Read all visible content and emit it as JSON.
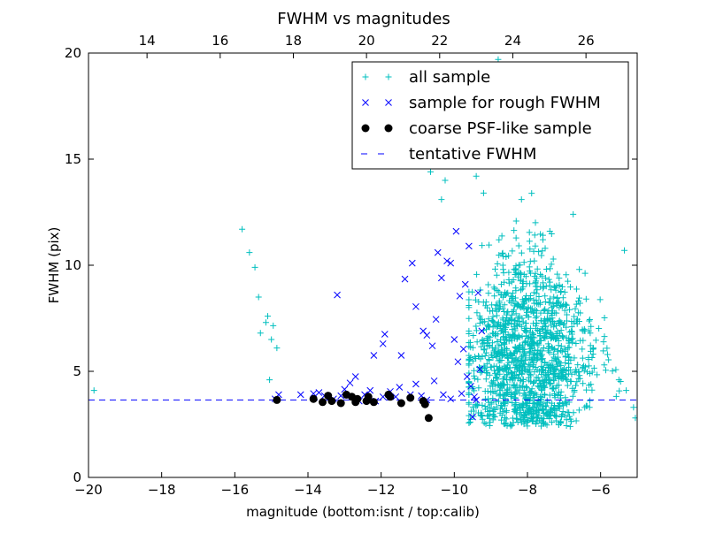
{
  "chart_data": {
    "type": "scatter",
    "title": "FWHM vs magnitudes",
    "xlabel": "magnitude (bottom:isnt / top:calib)",
    "ylabel": "FWHM (pix)",
    "xlim": [
      -20,
      -5
    ],
    "ylim": [
      0,
      20
    ],
    "x_ticks": [
      -20,
      -18,
      -16,
      -14,
      -12,
      -10,
      -8,
      -6
    ],
    "x_tick_labels": [
      "−20",
      "−18",
      "−16",
      "−14",
      "−12",
      "−10",
      "−8",
      "−6"
    ],
    "y_ticks": [
      0,
      5,
      10,
      15,
      20
    ],
    "y_tick_labels": [
      "0",
      "5",
      "10",
      "15",
      "20"
    ],
    "top_axis": {
      "xlim": [
        12.4,
        27.4
      ],
      "ticks": [
        14,
        16,
        18,
        20,
        22,
        24,
        26
      ],
      "tick_labels": [
        "14",
        "16",
        "18",
        "20",
        "22",
        "24",
        "26"
      ]
    },
    "grid": false,
    "legend_position": "top-right",
    "series": [
      {
        "name": "all sample",
        "marker": "plus",
        "color": "#00bfbf",
        "points": [
          [
            -19.85,
            4.1
          ],
          [
            -15.8,
            11.7
          ],
          [
            -15.6,
            10.6
          ],
          [
            -15.45,
            9.9
          ],
          [
            -15.35,
            8.5
          ],
          [
            -15.1,
            7.6
          ],
          [
            -15.15,
            7.3
          ],
          [
            -14.95,
            7.15
          ],
          [
            -15.0,
            6.5
          ],
          [
            -14.85,
            6.1
          ],
          [
            -15.3,
            6.8
          ],
          [
            -15.05,
            4.6
          ],
          [
            -9.2,
            13.4
          ],
          [
            -9.4,
            14.2
          ],
          [
            -9.5,
            15.6
          ],
          [
            -9.65,
            17.1
          ],
          [
            -8.8,
            19.7
          ],
          [
            -8.5,
            19.3
          ],
          [
            -8.15,
            18.3
          ],
          [
            -7.8,
            17.4
          ],
          [
            -7.5,
            16.2
          ],
          [
            -7.2,
            15.6
          ],
          [
            -6.75,
            12.4
          ],
          [
            -5.35,
            10.7
          ],
          [
            -10.65,
            14.4
          ],
          [
            -10.35,
            13.1
          ],
          [
            -10.25,
            14.0
          ],
          [
            -6.2,
            6.1
          ],
          [
            -5.9,
            5.3
          ],
          [
            -5.5,
            4.6
          ],
          [
            -5.3,
            4.1
          ],
          [
            -5.1,
            3.3
          ],
          [
            -5.05,
            2.8
          ]
        ],
        "cloud": {
          "x_range": [
            -9.6,
            -5.1
          ],
          "center_x": -8.0,
          "y_center": 5.8,
          "y_spread": 2.3,
          "count": 1400,
          "y_min": 2.4
        }
      },
      {
        "name": "sample for rough FWHM",
        "marker": "x",
        "color": "#0000ff",
        "points": [
          [
            -14.9,
            3.7
          ],
          [
            -14.8,
            3.9
          ],
          [
            -14.2,
            3.9
          ],
          [
            -13.85,
            3.95
          ],
          [
            -13.7,
            4.0
          ],
          [
            -13.55,
            3.85
          ],
          [
            -13.3,
            3.7
          ],
          [
            -13.1,
            3.85
          ],
          [
            -13.0,
            4.15
          ],
          [
            -12.85,
            4.45
          ],
          [
            -12.7,
            4.75
          ],
          [
            -12.6,
            3.6
          ],
          [
            -12.45,
            3.9
          ],
          [
            -12.3,
            4.1
          ],
          [
            -12.2,
            5.75
          ],
          [
            -12.15,
            3.6
          ],
          [
            -11.95,
            3.8
          ],
          [
            -11.75,
            4.05
          ],
          [
            -11.6,
            3.8
          ],
          [
            -11.5,
            4.25
          ],
          [
            -11.2,
            3.9
          ],
          [
            -11.05,
            4.4
          ],
          [
            -10.9,
            3.85
          ],
          [
            -10.75,
            3.65
          ],
          [
            -13.2,
            8.6
          ],
          [
            -11.95,
            6.3
          ],
          [
            -11.9,
            6.75
          ],
          [
            -11.45,
            5.75
          ],
          [
            -11.35,
            9.35
          ],
          [
            -11.15,
            10.1
          ],
          [
            -11.05,
            8.05
          ],
          [
            -10.85,
            6.9
          ],
          [
            -10.75,
            6.7
          ],
          [
            -10.6,
            6.2
          ],
          [
            -10.5,
            7.45
          ],
          [
            -10.45,
            10.6
          ],
          [
            -10.35,
            9.4
          ],
          [
            -10.2,
            10.2
          ],
          [
            -10.1,
            10.1
          ],
          [
            -9.95,
            11.6
          ],
          [
            -9.85,
            8.55
          ],
          [
            -9.7,
            9.1
          ],
          [
            -9.6,
            10.9
          ],
          [
            -10.0,
            6.5
          ],
          [
            -9.9,
            5.45
          ],
          [
            -9.75,
            6.05
          ],
          [
            -9.65,
            4.75
          ],
          [
            -9.55,
            4.3
          ],
          [
            -9.45,
            3.8
          ],
          [
            -9.4,
            3.65
          ],
          [
            -9.5,
            2.85
          ],
          [
            -10.1,
            3.7
          ],
          [
            -9.8,
            3.95
          ],
          [
            -9.3,
            5.1
          ],
          [
            -9.25,
            6.9
          ],
          [
            -9.35,
            8.7
          ],
          [
            -10.3,
            3.9
          ],
          [
            -10.55,
            4.55
          ]
        ]
      },
      {
        "name": "coarse PSF-like sample",
        "marker": "dot",
        "color": "#000000",
        "points": [
          [
            -14.85,
            3.65
          ],
          [
            -13.85,
            3.7
          ],
          [
            -13.6,
            3.55
          ],
          [
            -13.45,
            3.85
          ],
          [
            -13.35,
            3.6
          ],
          [
            -13.1,
            3.5
          ],
          [
            -12.95,
            3.9
          ],
          [
            -12.8,
            3.8
          ],
          [
            -12.7,
            3.55
          ],
          [
            -12.65,
            3.7
          ],
          [
            -12.4,
            3.6
          ],
          [
            -12.35,
            3.8
          ],
          [
            -12.2,
            3.55
          ],
          [
            -11.8,
            3.9
          ],
          [
            -11.75,
            3.8
          ],
          [
            -11.45,
            3.5
          ],
          [
            -11.2,
            3.75
          ],
          [
            -10.85,
            3.6
          ],
          [
            -10.8,
            3.45
          ],
          [
            -10.7,
            2.8
          ]
        ]
      },
      {
        "name": "tentative FWHM",
        "marker": "dashed-line",
        "color": "#0000ff",
        "y": 3.65
      }
    ]
  }
}
